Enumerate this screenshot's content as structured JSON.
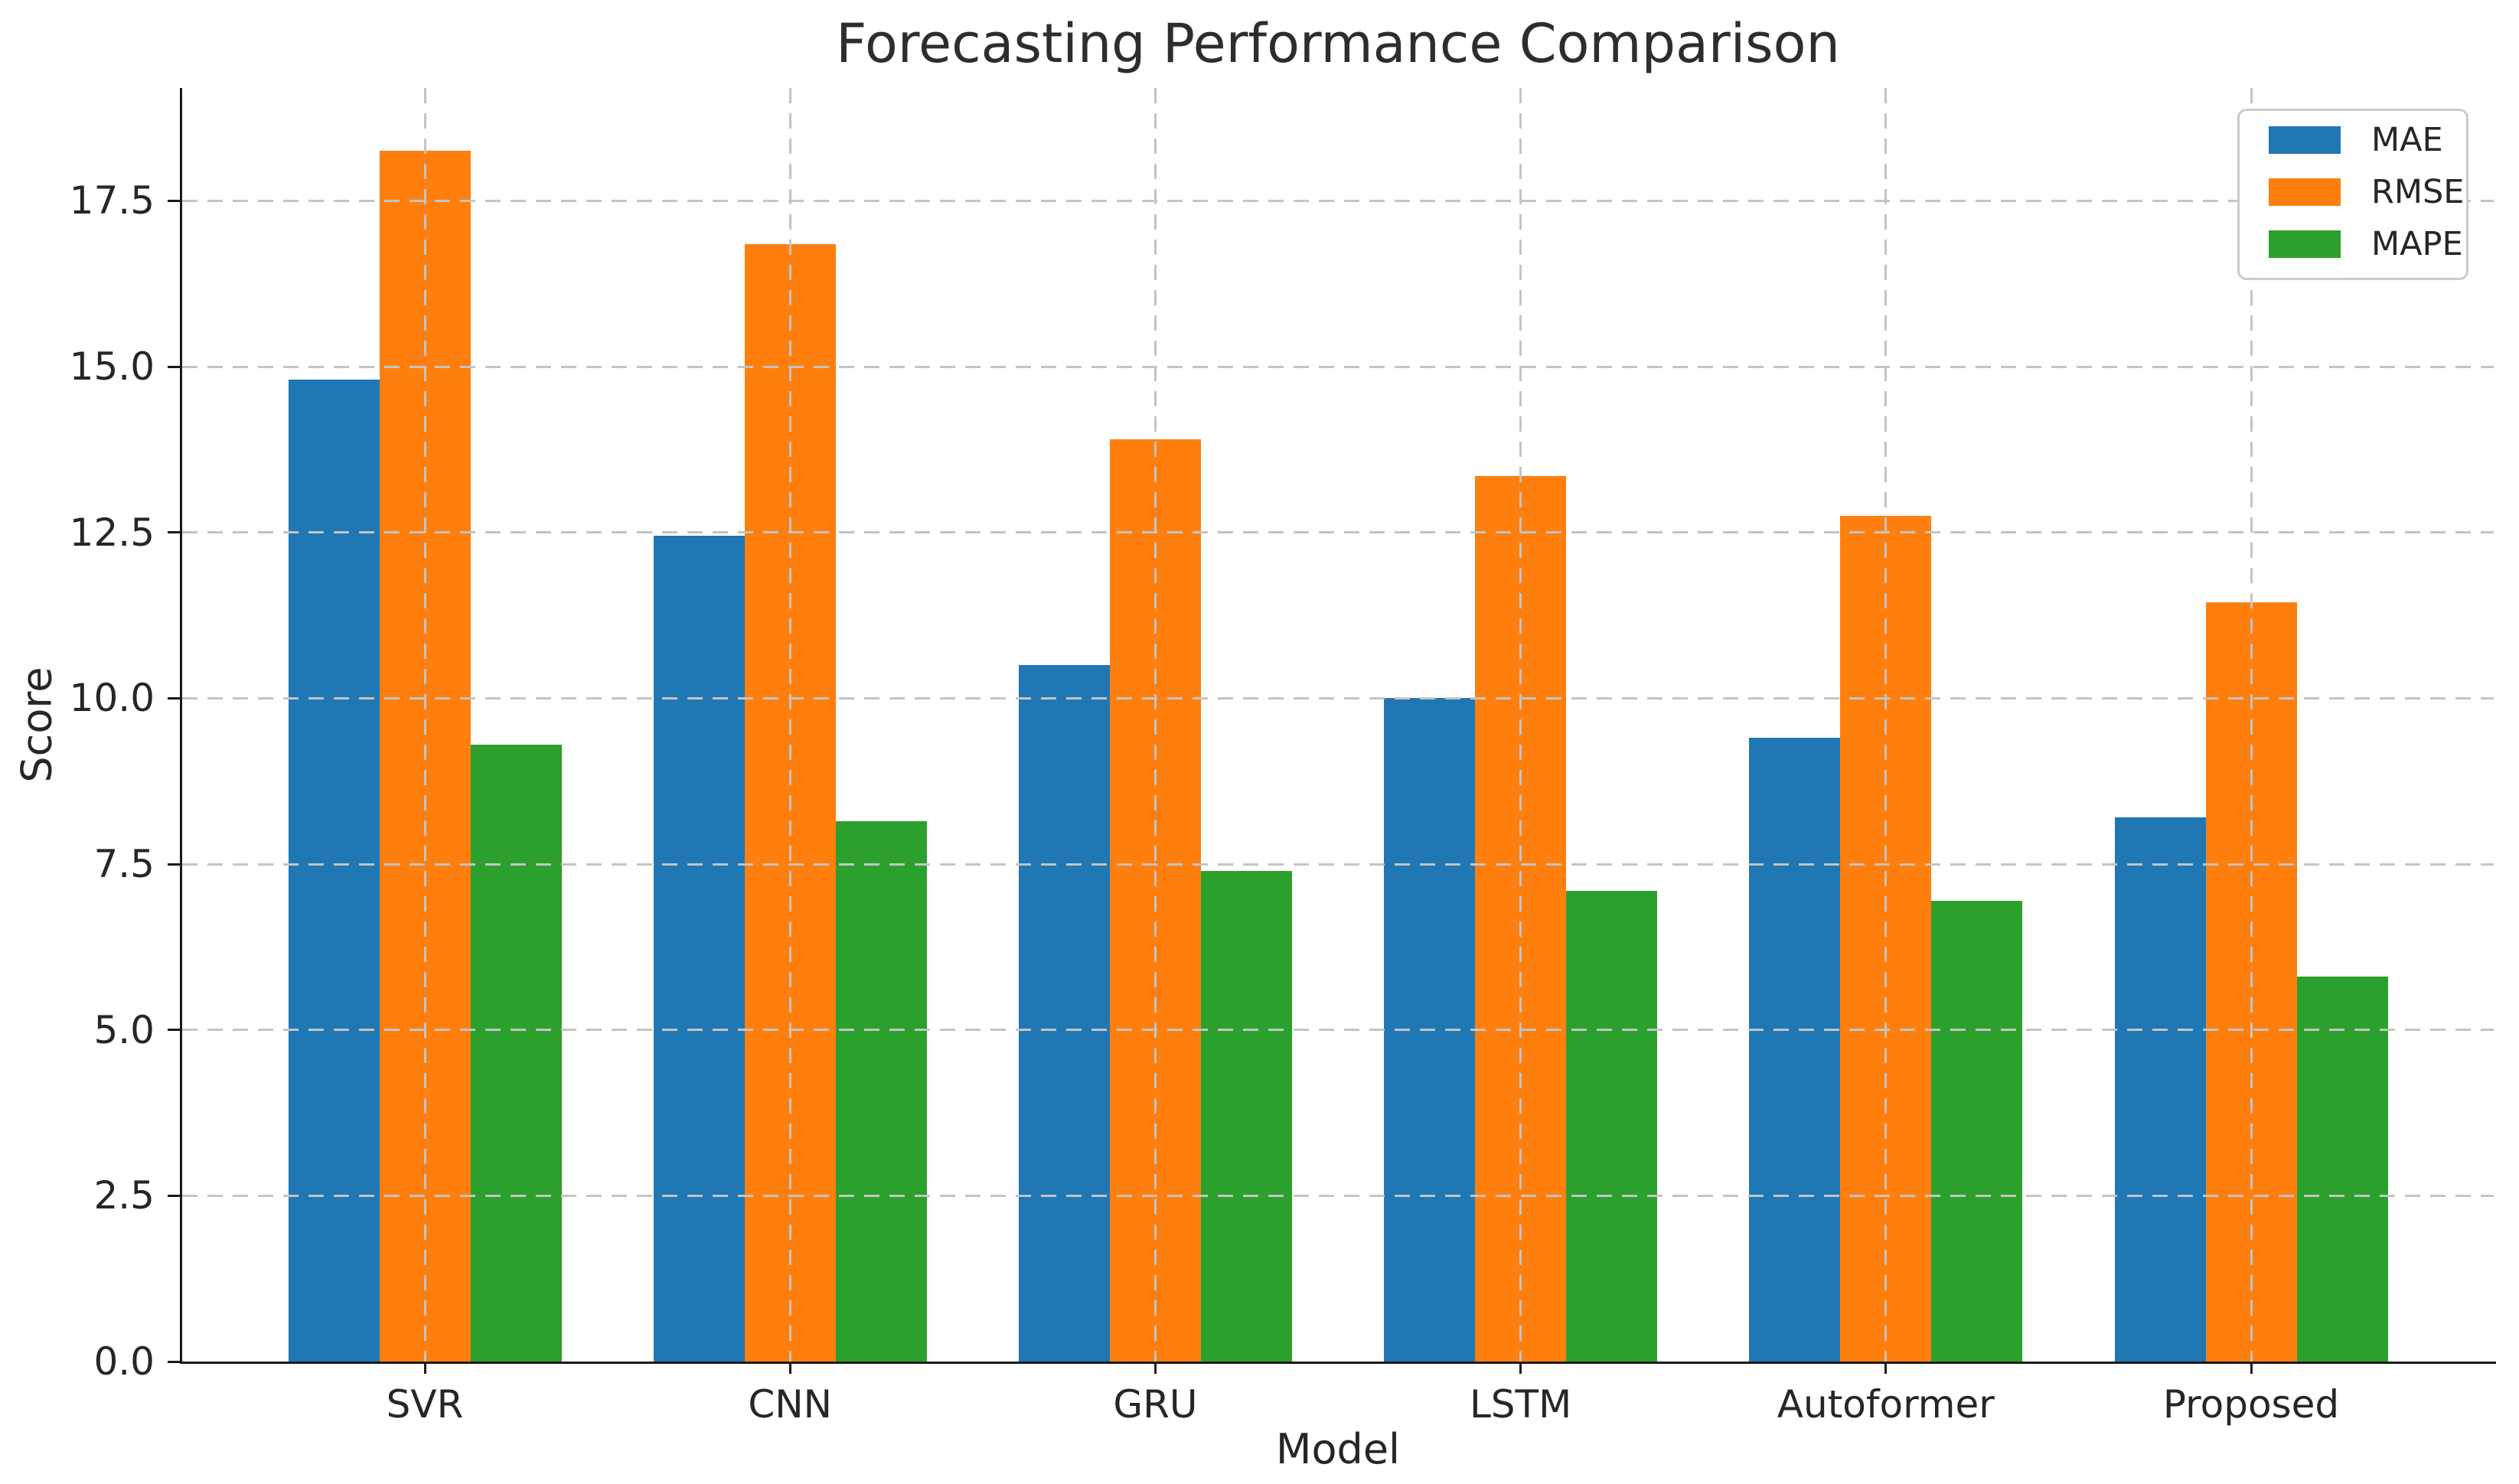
{
  "title": "Forecasting Performance Comparison",
  "chart_data": {
    "type": "bar",
    "title": "Forecasting Performance Comparison",
    "xlabel": "Model",
    "ylabel": "Score",
    "categories": [
      "SVR",
      "CNN",
      "GRU",
      "LSTM",
      "Autoformer",
      "Proposed"
    ],
    "series": [
      {
        "name": "MAE",
        "color": "#1f77b4",
        "values": [
          14.8,
          12.45,
          10.5,
          10.0,
          9.4,
          8.2
        ]
      },
      {
        "name": "RMSE",
        "color": "#ff7f0e",
        "values": [
          18.25,
          16.85,
          13.9,
          13.35,
          12.75,
          11.45
        ]
      },
      {
        "name": "MAPE",
        "color": "#2ca02c",
        "values": [
          9.3,
          8.15,
          7.4,
          7.1,
          6.95,
          5.8
        ]
      }
    ],
    "yticks": [
      0.0,
      2.5,
      5.0,
      7.5,
      10.0,
      12.5,
      15.0,
      17.5
    ],
    "ytick_labels": [
      "0.0",
      "2.5",
      "5.0",
      "7.5",
      "10.0",
      "12.5",
      "15.0",
      "17.5"
    ],
    "ylim": [
      0,
      19.2
    ],
    "grid": "dashed-above-bars",
    "grid_color": "#c4c4c4",
    "legend_position": "upper right",
    "legend_items": [
      "MAE",
      "RMSE",
      "MAPE"
    ]
  }
}
